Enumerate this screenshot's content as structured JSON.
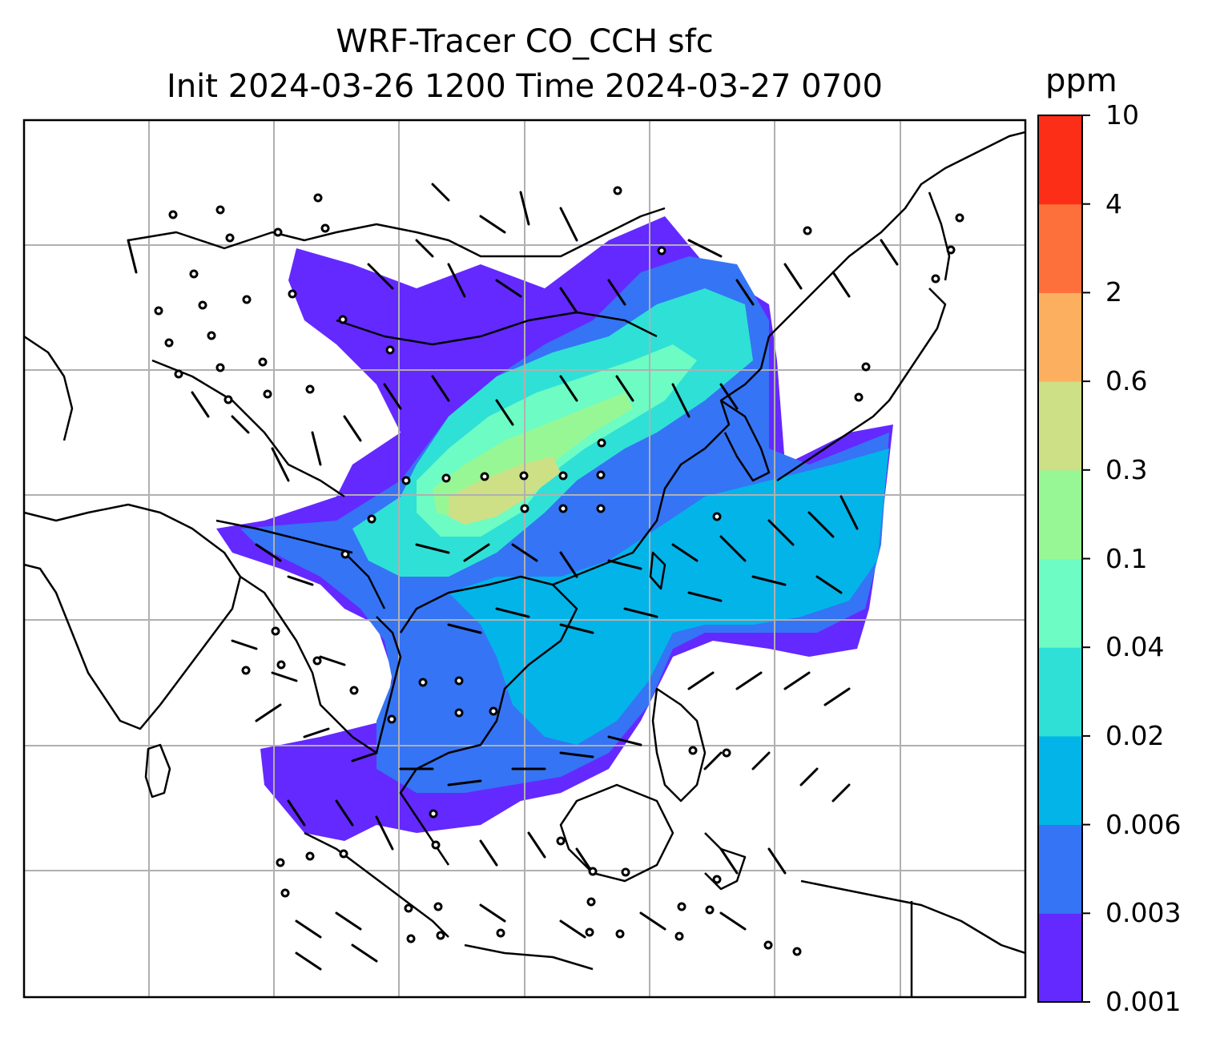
{
  "title": {
    "line1": "WRF-Tracer CO_CCH sfc",
    "line2": "Init 2024-03-26 1200 Time 2024-03-27 0700"
  },
  "colorbar": {
    "unit": "ppm",
    "levels": [
      "0.001",
      "0.003",
      "0.006",
      "0.02",
      "0.04",
      "0.1",
      "0.3",
      "0.6",
      "2",
      "4",
      "10"
    ],
    "colors": [
      "#6429ff",
      "#3574f5",
      "#03b4e9",
      "#2fe0d6",
      "#6dfcc4",
      "#98f795",
      "#cde086",
      "#fcb05f",
      "#fd6f3b",
      "#fd2e17"
    ]
  },
  "map": {
    "features": [
      "coastlines",
      "country-borders",
      "gridlines",
      "wind-barbs",
      "tracer-concentration"
    ],
    "gridline_color": "#b0b0b0",
    "line_color": "#000000"
  }
}
